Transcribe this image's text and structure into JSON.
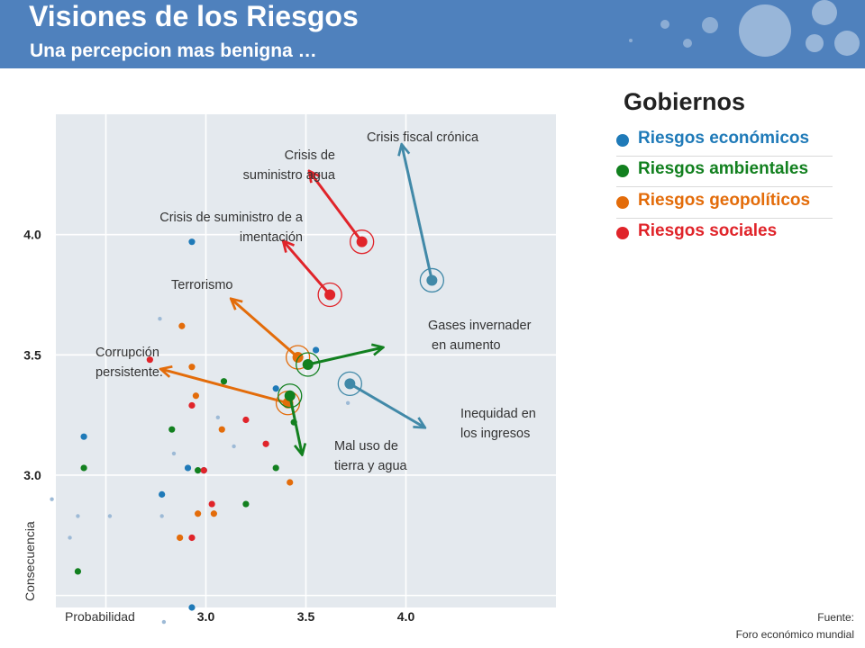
{
  "header": {
    "title": "Visiones de los Riesgos",
    "subtitle": "Una percepcion mas benigna …"
  },
  "legend": {
    "title": "Gobiernos",
    "items": [
      {
        "label": "Riesgos económicos",
        "color": "#1f7ab8"
      },
      {
        "label": "Riesgos ambientales",
        "color": "#12801f"
      },
      {
        "label": "Riesgos geopolíticos",
        "color": "#e36c0a"
      },
      {
        "label": "Riesgos sociales",
        "color": "#e0242a"
      }
    ]
  },
  "source": {
    "line1": "Fuente:",
    "line2": "Foro económico mundial"
  },
  "chart_data": {
    "type": "scatter",
    "xlabel": "Probabilidad",
    "ylabel": "Consecuencia",
    "xlim": [
      2.25,
      4.75
    ],
    "ylim": [
      2.45,
      4.5
    ],
    "x_ticks": [
      {
        "value": 3.0,
        "label": "3.0"
      },
      {
        "value": 3.5,
        "label": "3.5"
      },
      {
        "value": 4.0,
        "label": "4.0"
      }
    ],
    "y_ticks": [
      {
        "value": 3.0,
        "label": "3.0"
      },
      {
        "value": 3.5,
        "label": "3.5"
      },
      {
        "value": 4.0,
        "label": "4.0"
      }
    ],
    "gridlines": [
      2.5,
      3.0,
      3.5,
      4.0
    ],
    "series": [
      {
        "category": "economicos",
        "color": "#1f7ab8",
        "points": [
          [
            2.93,
            3.97
          ],
          [
            2.39,
            3.16
          ],
          [
            2.91,
            3.03
          ],
          [
            2.99,
            3.02
          ],
          [
            2.78,
            2.92
          ],
          [
            3.35,
            3.36
          ],
          [
            3.55,
            3.52
          ],
          [
            2.93,
            2.45
          ]
        ]
      },
      {
        "category": "ambientales",
        "color": "#12801f",
        "points": [
          [
            3.09,
            3.39
          ],
          [
            2.83,
            3.19
          ],
          [
            2.39,
            3.03
          ],
          [
            2.96,
            3.02
          ],
          [
            3.35,
            3.03
          ],
          [
            3.44,
            3.22
          ],
          [
            3.2,
            2.88
          ],
          [
            2.36,
            2.6
          ]
        ]
      },
      {
        "category": "geopoliticos",
        "color": "#e36c0a",
        "points": [
          [
            2.88,
            3.62
          ],
          [
            2.93,
            3.45
          ],
          [
            2.95,
            3.33
          ],
          [
            3.08,
            3.19
          ],
          [
            3.42,
            2.97
          ],
          [
            2.96,
            2.84
          ],
          [
            3.04,
            2.84
          ],
          [
            2.87,
            2.74
          ]
        ]
      },
      {
        "category": "sociales",
        "color": "#e0242a",
        "points": [
          [
            2.72,
            3.48
          ],
          [
            2.93,
            3.29
          ],
          [
            3.2,
            3.23
          ],
          [
            3.3,
            3.13
          ],
          [
            2.99,
            3.02
          ],
          [
            3.03,
            2.88
          ],
          [
            2.93,
            2.74
          ]
        ]
      },
      {
        "category": "otros",
        "color": "#9dbad6",
        "points": [
          [
            2.77,
            3.65
          ],
          [
            2.23,
            2.9
          ],
          [
            2.36,
            2.83
          ],
          [
            2.32,
            2.74
          ],
          [
            2.52,
            2.83
          ],
          [
            2.78,
            2.83
          ],
          [
            2.84,
            3.09
          ],
          [
            3.06,
            3.24
          ],
          [
            3.14,
            3.12
          ],
          [
            3.71,
            3.3
          ],
          [
            2.79,
            2.39
          ]
        ]
      }
    ],
    "highlighted": [
      {
        "label": "Crisis fiscal crónica",
        "color": "#4189a8",
        "from": [
          4.13,
          3.81
        ],
        "to": [
          3.98,
          4.37
        ]
      },
      {
        "label": "Crisis de suministro agua",
        "color": "#e0242a",
        "from": [
          3.78,
          3.97
        ],
        "to": [
          3.52,
          4.26
        ]
      },
      {
        "label": "Crisis de suministro de alimentación",
        "color": "#e0242a",
        "from": [
          3.62,
          3.75
        ],
        "to": [
          3.39,
          3.97
        ]
      },
      {
        "label": "Terrorismo",
        "color": "#e36c0a",
        "from": [
          3.46,
          3.49
        ],
        "to": [
          3.13,
          3.73
        ]
      },
      {
        "label": "Corrupción persistente.",
        "color": "#e36c0a",
        "from": [
          3.41,
          3.3
        ],
        "to": [
          2.78,
          3.44
        ]
      },
      {
        "label": "Gases invernadero en aumento",
        "color": "#12801f",
        "from": [
          3.51,
          3.46
        ],
        "to": [
          3.88,
          3.53
        ]
      },
      {
        "label": "Mal uso de tierra y agua",
        "color": "#12801f",
        "from": [
          3.42,
          3.33
        ],
        "to": [
          3.48,
          3.09
        ]
      },
      {
        "label": "Inequidad en los ingresos",
        "color": "#4189a8",
        "from": [
          3.72,
          3.38
        ],
        "to": [
          4.09,
          3.2
        ]
      }
    ]
  }
}
